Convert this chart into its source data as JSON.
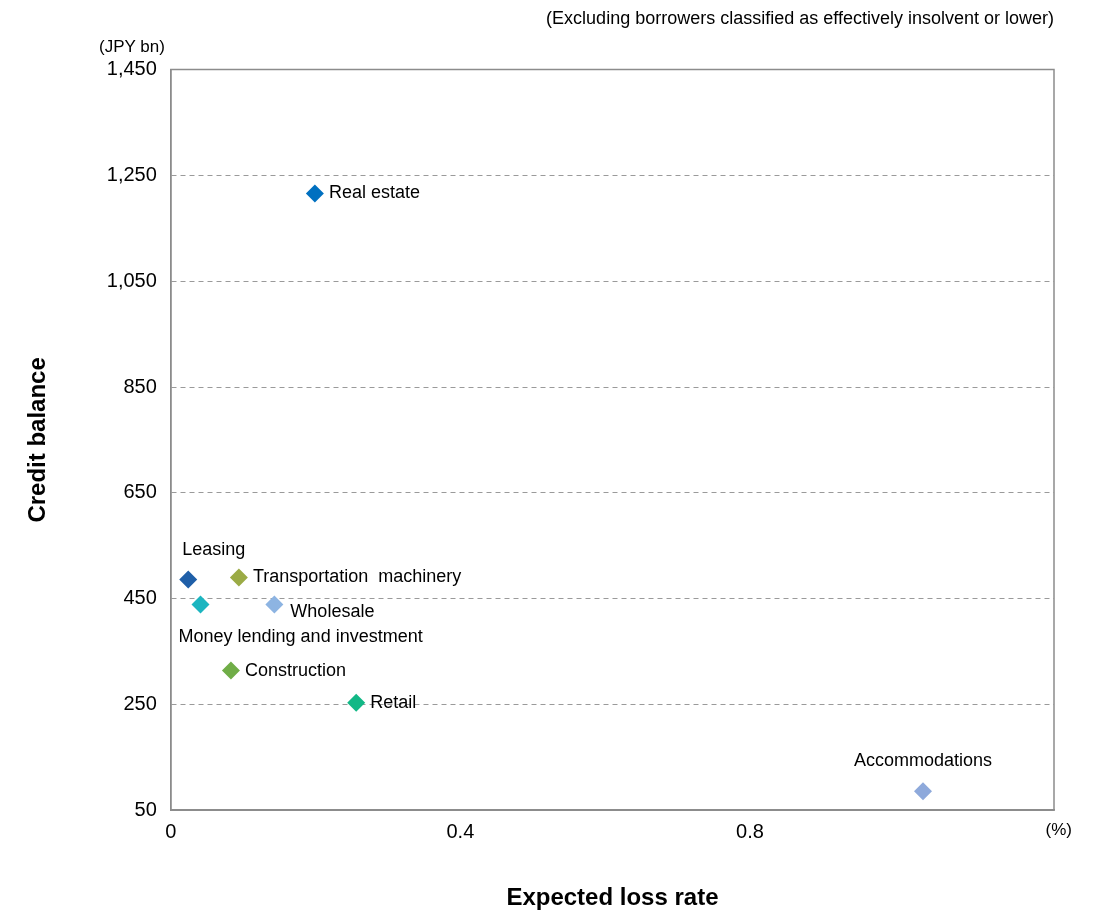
{
  "chart_data": {
    "type": "scatter",
    "subtitle": "(Excluding borrowers classified as effectively insolvent or lower)",
    "xlabel": "Expected loss rate",
    "ylabel": "Credit balance",
    "annotations": [
      "(JPY bn)",
      "(%)"
    ],
    "xlim": [
      0,
      1.22
    ],
    "xticks": [
      0,
      0.4,
      0.8
    ],
    "ylim": [
      50,
      1450
    ],
    "yticks": [
      50,
      250,
      450,
      650,
      850,
      {
        "value": 1050,
        "label": "1,050"
      },
      {
        "value": 1250,
        "label": "1,250"
      },
      {
        "value": 1450,
        "label": "1,450"
      }
    ],
    "grid": "y",
    "legend": false,
    "marker": "diamond",
    "series": [
      {
        "name": "Real estate",
        "color": "#0070c0",
        "x": [
          0.199
        ],
        "values": [
          1216
        ]
      },
      {
        "name": "Leasing",
        "color": "#1f5fa8",
        "x": [
          0.024
        ],
        "values": [
          486
        ]
      },
      {
        "name": "Transportation  machinery",
        "color": "#9bab45",
        "x": [
          0.094
        ],
        "values": [
          490
        ]
      },
      {
        "name": "Money lending and investment",
        "color": "#1cb5c0",
        "x": [
          0.041
        ],
        "values": [
          439
        ]
      },
      {
        "name": "Wholesale",
        "color": "#8db4e2",
        "x": [
          0.143
        ],
        "values": [
          439
        ]
      },
      {
        "name": "Construction",
        "color": "#70ad47",
        "x": [
          0.083
        ],
        "values": [
          314
        ]
      },
      {
        "name": "Retail",
        "color": "#12b886",
        "x": [
          0.256
        ],
        "values": [
          253
        ]
      },
      {
        "name": "Accommodations",
        "color": "#8ea9db",
        "x": [
          1.039
        ],
        "values": [
          86
        ]
      }
    ]
  }
}
